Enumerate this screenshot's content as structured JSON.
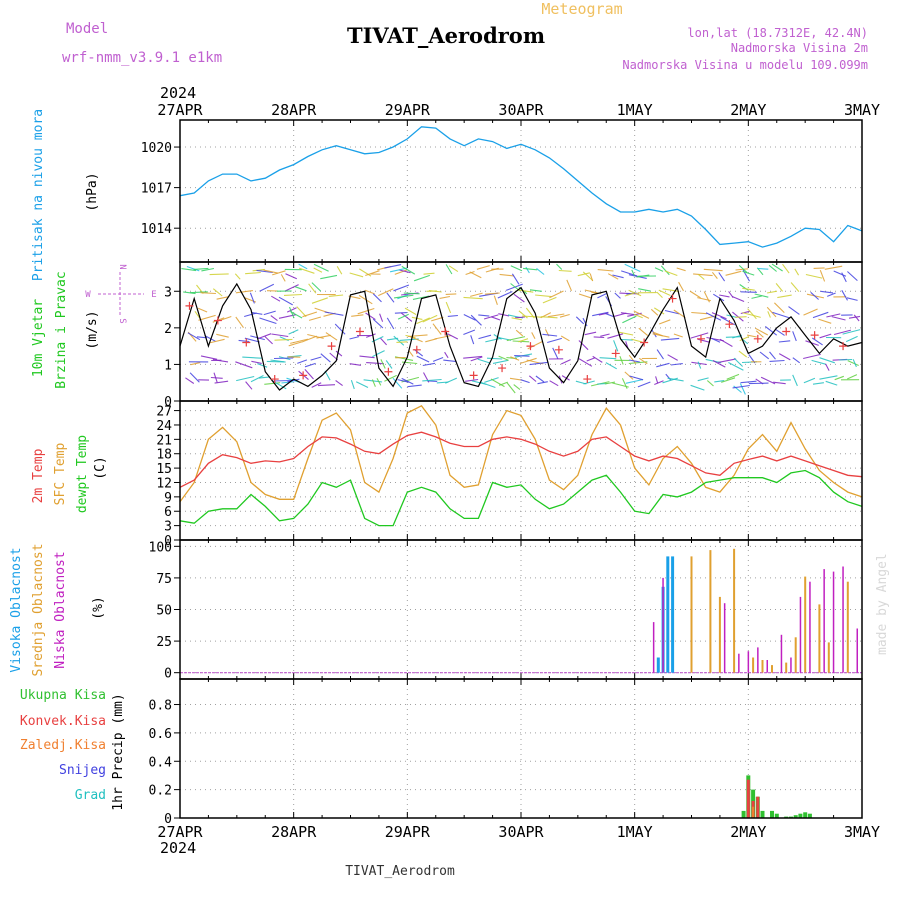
{
  "header": {
    "subtitle": "Meteogram",
    "title": "TIVAT_Aerodrom",
    "model_label": "Model",
    "model_value": "wrf-nmm_v3.9.1 e1km",
    "location_line1": "lon,lat (18.7312E, 42.4N)",
    "location_line2": "Nadmorska Visina 2m",
    "location_line3": "Nadmorska Visina u modelu 109.099m",
    "year": "2024",
    "footer": "TIVAT_Aerodrom",
    "credit": "made by Angel"
  },
  "colors": {
    "pressure": "#1aa0e8",
    "t2m": "#e84040",
    "sfc": "#e0a030",
    "dewpt": "#20c820",
    "wind_speed": "#000000",
    "visoka": "#1aa0e8",
    "srednja": "#e0a030",
    "niska": "#c020c0",
    "ukupna": "#30c030",
    "konvek": "#e84040",
    "zaledj": "#f08030",
    "snijeg": "#4040e0",
    "grad": "#20c0c0"
  },
  "chart_data": [
    {
      "type": "line",
      "panel": "pressure",
      "x_ticks": [
        "27APR",
        "28APR",
        "29APR",
        "30APR",
        "1MAY",
        "2MAY",
        "3MAY"
      ],
      "xlim_hours": [
        0,
        144
      ],
      "ylabel_left": "Pritisak na nivou mora",
      "unit": "(hPa)",
      "y_ticks": [
        1014,
        1017,
        1020
      ],
      "ylim": [
        1011.5,
        1022
      ],
      "series": [
        {
          "name": "Pritisak na nivou mora",
          "x": [
            0,
            3,
            6,
            9,
            12,
            15,
            18,
            21,
            24,
            27,
            30,
            33,
            36,
            39,
            42,
            45,
            48,
            51,
            54,
            57,
            60,
            63,
            66,
            69,
            72,
            75,
            78,
            81,
            84,
            87,
            90,
            93,
            96,
            99,
            102,
            105,
            108,
            111,
            114,
            117,
            120,
            123,
            126,
            129,
            132,
            135,
            138,
            141,
            144
          ],
          "values": [
            1016.4,
            1016.6,
            1017.5,
            1018.0,
            1018.0,
            1017.5,
            1017.7,
            1018.3,
            1018.7,
            1019.3,
            1019.8,
            1020.1,
            1019.8,
            1019.5,
            1019.6,
            1020.0,
            1020.6,
            1021.5,
            1021.4,
            1020.6,
            1020.1,
            1020.6,
            1020.4,
            1019.9,
            1020.2,
            1019.8,
            1019.2,
            1018.4,
            1017.5,
            1016.6,
            1015.8,
            1015.2,
            1015.2,
            1015.4,
            1015.2,
            1015.4,
            1014.9,
            1013.9,
            1012.8,
            1012.9,
            1013.0,
            1012.6,
            1012.9,
            1013.4,
            1014.0,
            1013.9,
            1013.0,
            1014.2,
            1013.8
          ]
        }
      ]
    },
    {
      "type": "line",
      "panel": "wind",
      "ylabel_left_1": "10m Vjetar",
      "ylabel_left_2": "Brzina i Pravac",
      "unit": "(m/s)",
      "compass": {
        "n": "N",
        "s": "S",
        "e": "E",
        "w": "W"
      },
      "y_ticks": [
        0,
        1,
        2,
        3
      ],
      "ylim": [
        0,
        3.8
      ],
      "series": [
        {
          "name": "wind speed",
          "x": [
            0,
            3,
            6,
            9,
            12,
            15,
            18,
            21,
            24,
            27,
            30,
            33,
            36,
            39,
            42,
            45,
            48,
            51,
            54,
            57,
            60,
            63,
            66,
            69,
            72,
            75,
            78,
            81,
            84,
            87,
            90,
            93,
            96,
            99,
            102,
            105,
            108,
            111,
            114,
            117,
            120,
            123,
            126,
            129,
            132,
            135,
            138,
            141,
            144
          ],
          "values": [
            1.5,
            2.8,
            1.5,
            2.6,
            3.2,
            2.5,
            0.8,
            0.3,
            0.6,
            0.4,
            0.7,
            1.1,
            2.9,
            3.0,
            0.9,
            0.4,
            1.2,
            2.8,
            2.9,
            1.5,
            0.5,
            0.4,
            1.2,
            2.8,
            3.1,
            2.4,
            0.9,
            0.5,
            1.1,
            2.9,
            3.0,
            1.7,
            1.2,
            1.8,
            2.5,
            3.1,
            1.5,
            1.2,
            2.8,
            2.2,
            1.3,
            1.5,
            2.0,
            2.3,
            1.8,
            1.3,
            1.7,
            1.5,
            1.6
          ]
        },
        {
          "name": "wind speed (red markers)",
          "x": [
            2,
            8,
            14,
            20,
            26,
            32,
            38,
            44,
            50,
            56,
            62,
            68,
            74,
            80,
            86,
            92,
            98,
            104,
            110,
            116,
            122,
            128,
            134,
            140
          ],
          "values": [
            2.6,
            2.2,
            1.6,
            0.6,
            0.7,
            1.5,
            1.9,
            0.8,
            1.4,
            1.9,
            0.7,
            0.9,
            1.5,
            1.4,
            0.6,
            1.3,
            1.6,
            2.8,
            1.7,
            2.1,
            1.7,
            1.9,
            1.8,
            1.5
          ]
        }
      ]
    },
    {
      "type": "line",
      "panel": "temperature",
      "ylabel_1": "2m Temp",
      "ylabel_2": "SFC Temp",
      "ylabel_3": "dewpt Temp",
      "unit": "(C)",
      "y_ticks": [
        0,
        3,
        6,
        9,
        12,
        15,
        18,
        21,
        24,
        27
      ],
      "ylim": [
        0,
        29
      ],
      "x": [
        0,
        3,
        6,
        9,
        12,
        15,
        18,
        21,
        24,
        27,
        30,
        33,
        36,
        39,
        42,
        45,
        48,
        51,
        54,
        57,
        60,
        63,
        66,
        69,
        72,
        75,
        78,
        81,
        84,
        87,
        90,
        93,
        96,
        99,
        102,
        105,
        108,
        111,
        114,
        117,
        120,
        123,
        126,
        129,
        132,
        135,
        138,
        141,
        144
      ],
      "series": [
        {
          "name": "2m Temp",
          "values": [
            11.0,
            12.5,
            16.0,
            17.8,
            17.2,
            16.0,
            16.5,
            16.3,
            17.0,
            19.5,
            21.5,
            21.3,
            20.0,
            18.5,
            18.0,
            20.0,
            21.8,
            22.5,
            21.5,
            20.2,
            19.5,
            19.5,
            21.0,
            21.5,
            21.0,
            20.0,
            18.5,
            17.5,
            18.5,
            21.0,
            21.5,
            19.5,
            17.5,
            16.5,
            17.5,
            17.0,
            15.5,
            14.0,
            13.5,
            16.0,
            16.8,
            17.5,
            16.5,
            17.5,
            16.5,
            15.5,
            14.5,
            13.5,
            13.2
          ]
        },
        {
          "name": "SFC Temp",
          "values": [
            8.0,
            12.0,
            21.0,
            23.5,
            20.5,
            12.0,
            9.5,
            8.5,
            8.5,
            17.0,
            25.0,
            26.5,
            23.0,
            12.0,
            10.0,
            17.0,
            26.5,
            28.0,
            24.0,
            13.5,
            11.0,
            11.5,
            22.0,
            27.0,
            26.0,
            21.0,
            12.5,
            10.5,
            13.5,
            22.0,
            27.5,
            24.0,
            15.0,
            11.5,
            17.0,
            19.5,
            16.0,
            11.0,
            10.0,
            13.5,
            19.0,
            22.0,
            18.5,
            24.5,
            19.0,
            14.5,
            12.0,
            10.0,
            9.0
          ]
        },
        {
          "name": "dewpt Temp",
          "values": [
            4.0,
            3.5,
            6.0,
            6.5,
            6.5,
            9.5,
            7.0,
            4.0,
            4.5,
            7.5,
            12.0,
            11.0,
            12.5,
            4.5,
            3.0,
            3.0,
            10.0,
            11.0,
            10.0,
            6.5,
            4.5,
            4.5,
            12.0,
            11.0,
            11.5,
            8.5,
            6.5,
            7.5,
            10.0,
            12.5,
            13.5,
            10.0,
            6.0,
            5.5,
            9.5,
            9.0,
            10.0,
            12.0,
            12.5,
            13.0,
            13.0,
            13.0,
            12.0,
            14.0,
            14.5,
            13.0,
            10.0,
            8.0,
            7.0
          ]
        }
      ]
    },
    {
      "type": "bar",
      "panel": "cloud",
      "ylabel_1": "Visoka Oblacnost",
      "ylabel_2": "Srednja Oblacnost",
      "ylabel_3": "Niska Oblacnost",
      "unit": "(%)",
      "y_ticks": [
        0,
        25,
        50,
        75,
        100
      ],
      "ylim": [
        -5,
        105
      ],
      "series": [
        {
          "name": "Visoka Oblacnost",
          "x": [
            101,
            102,
            103,
            104
          ],
          "values": [
            12,
            68,
            92,
            92
          ]
        },
        {
          "name": "Srednja Oblacnost",
          "x": [
            108,
            112,
            114,
            117,
            121,
            123,
            125,
            128,
            130,
            132,
            135,
            137,
            141
          ],
          "values": [
            92,
            97,
            60,
            98,
            12,
            10,
            6,
            8,
            28,
            76,
            54,
            24,
            72
          ]
        },
        {
          "name": "Niska Oblacnost",
          "x": [
            100,
            102,
            115,
            118,
            120,
            122,
            124,
            127,
            129,
            131,
            133,
            136,
            138,
            140,
            143
          ],
          "values": [
            40,
            75,
            55,
            15,
            17,
            20,
            10,
            30,
            12,
            60,
            72,
            82,
            80,
            84,
            35
          ]
        }
      ]
    },
    {
      "type": "bar",
      "panel": "precip",
      "ylabel_1": "Ukupna Kisa",
      "ylabel_2": "Konvek.Kisa",
      "ylabel_3": "Zaledj.Kisa",
      "ylabel_4": "Snijeg",
      "ylabel_5": "Grad",
      "unit": "1hr Precip (mm)",
      "y_ticks": [
        0,
        0.2,
        0.4,
        0.6,
        0.8
      ],
      "ylim": [
        0,
        0.98
      ],
      "series": [
        {
          "name": "Ukupna Kisa",
          "x": [
            119,
            120,
            121,
            122,
            123,
            125,
            126,
            128,
            129,
            130,
            131,
            132,
            133
          ],
          "values": [
            0.05,
            0.3,
            0.2,
            0.15,
            0.05,
            0.05,
            0.03,
            0.01,
            0.01,
            0.02,
            0.03,
            0.04,
            0.03
          ]
        },
        {
          "name": "Konvek.Kisa",
          "x": [
            120,
            121,
            122
          ],
          "values": [
            0.27,
            0.12,
            0.15
          ]
        },
        {
          "name": "Zaledj.Kisa",
          "x": [
            121
          ],
          "values": [
            0.08
          ]
        }
      ]
    }
  ]
}
